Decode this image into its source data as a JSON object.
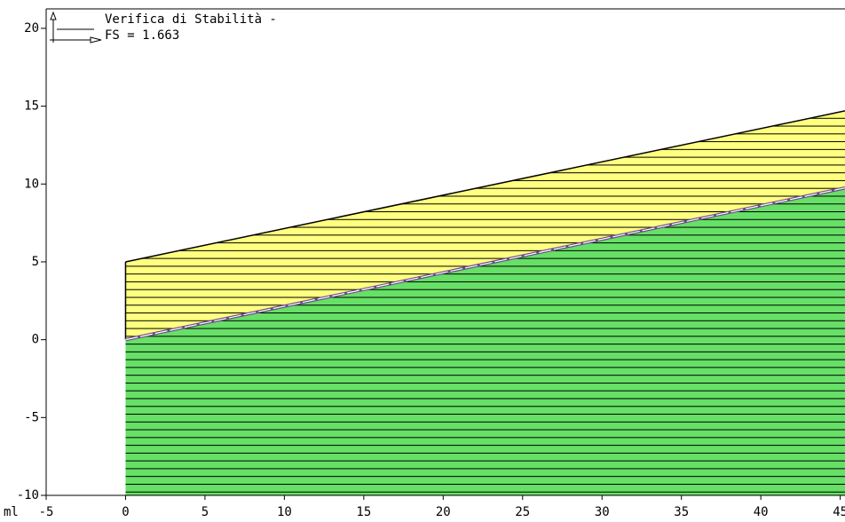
{
  "chart_data": {
    "type": "slope",
    "title": "Verifica di Stabilità -",
    "subtitle": "FS = 1.663",
    "x_label": "ml",
    "xlim": [
      -5,
      45.3
    ],
    "ylim": [
      -10,
      21.25
    ],
    "xticks": [
      -5,
      0,
      5,
      10,
      15,
      20,
      25,
      30,
      35,
      40,
      45
    ],
    "yticks": [
      -10,
      -5,
      0,
      5,
      10,
      15,
      20
    ],
    "series": [
      {
        "color": "#ffff80",
        "x": [
          0,
          45.3
        ],
        "values": [
          5,
          14.7
        ]
      },
      {
        "color": "#66e066",
        "x": [
          0,
          45.3
        ],
        "values": [
          0,
          9.75
        ]
      }
    ]
  }
}
